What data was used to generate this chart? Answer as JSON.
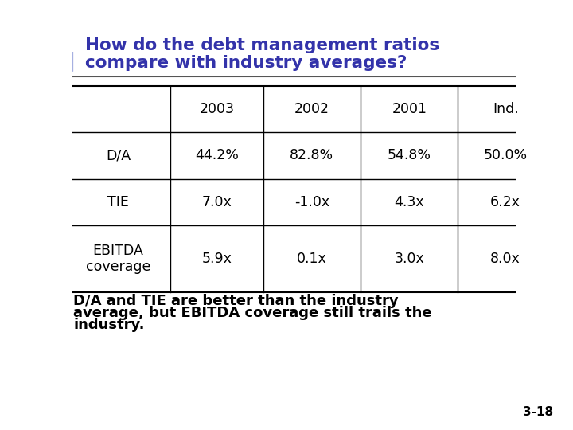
{
  "title_line1": "How do the debt management ratios",
  "title_line2": "compare with industry averages?",
  "title_color": "#3333AA",
  "bg_color": "#FFFFFF",
  "table_headers": [
    "",
    "2003",
    "2002",
    "2001",
    "Ind."
  ],
  "table_rows": [
    [
      "D/A",
      "44.2%",
      "82.8%",
      "54.8%",
      "50.0%"
    ],
    [
      "TIE",
      "7.0x",
      "-1.0x",
      "4.3x",
      "6.2x"
    ],
    [
      "EBITDA\ncoverage",
      "5.9x",
      "0.1x",
      "3.0x",
      "8.0x"
    ]
  ],
  "bullet_text_line1": "D/A and TIE are better than the industry",
  "bullet_text_line2": "average, but EBITDA coverage still trails the",
  "bullet_text_line3": "industry.",
  "bullet_square_color": "#3333AA",
  "slide_number": "3-18",
  "deco": {
    "yellow": "#FFD700",
    "red_pink": "#EE4444",
    "blue_dark": "#333399",
    "blue_mid": "#6677CC"
  }
}
